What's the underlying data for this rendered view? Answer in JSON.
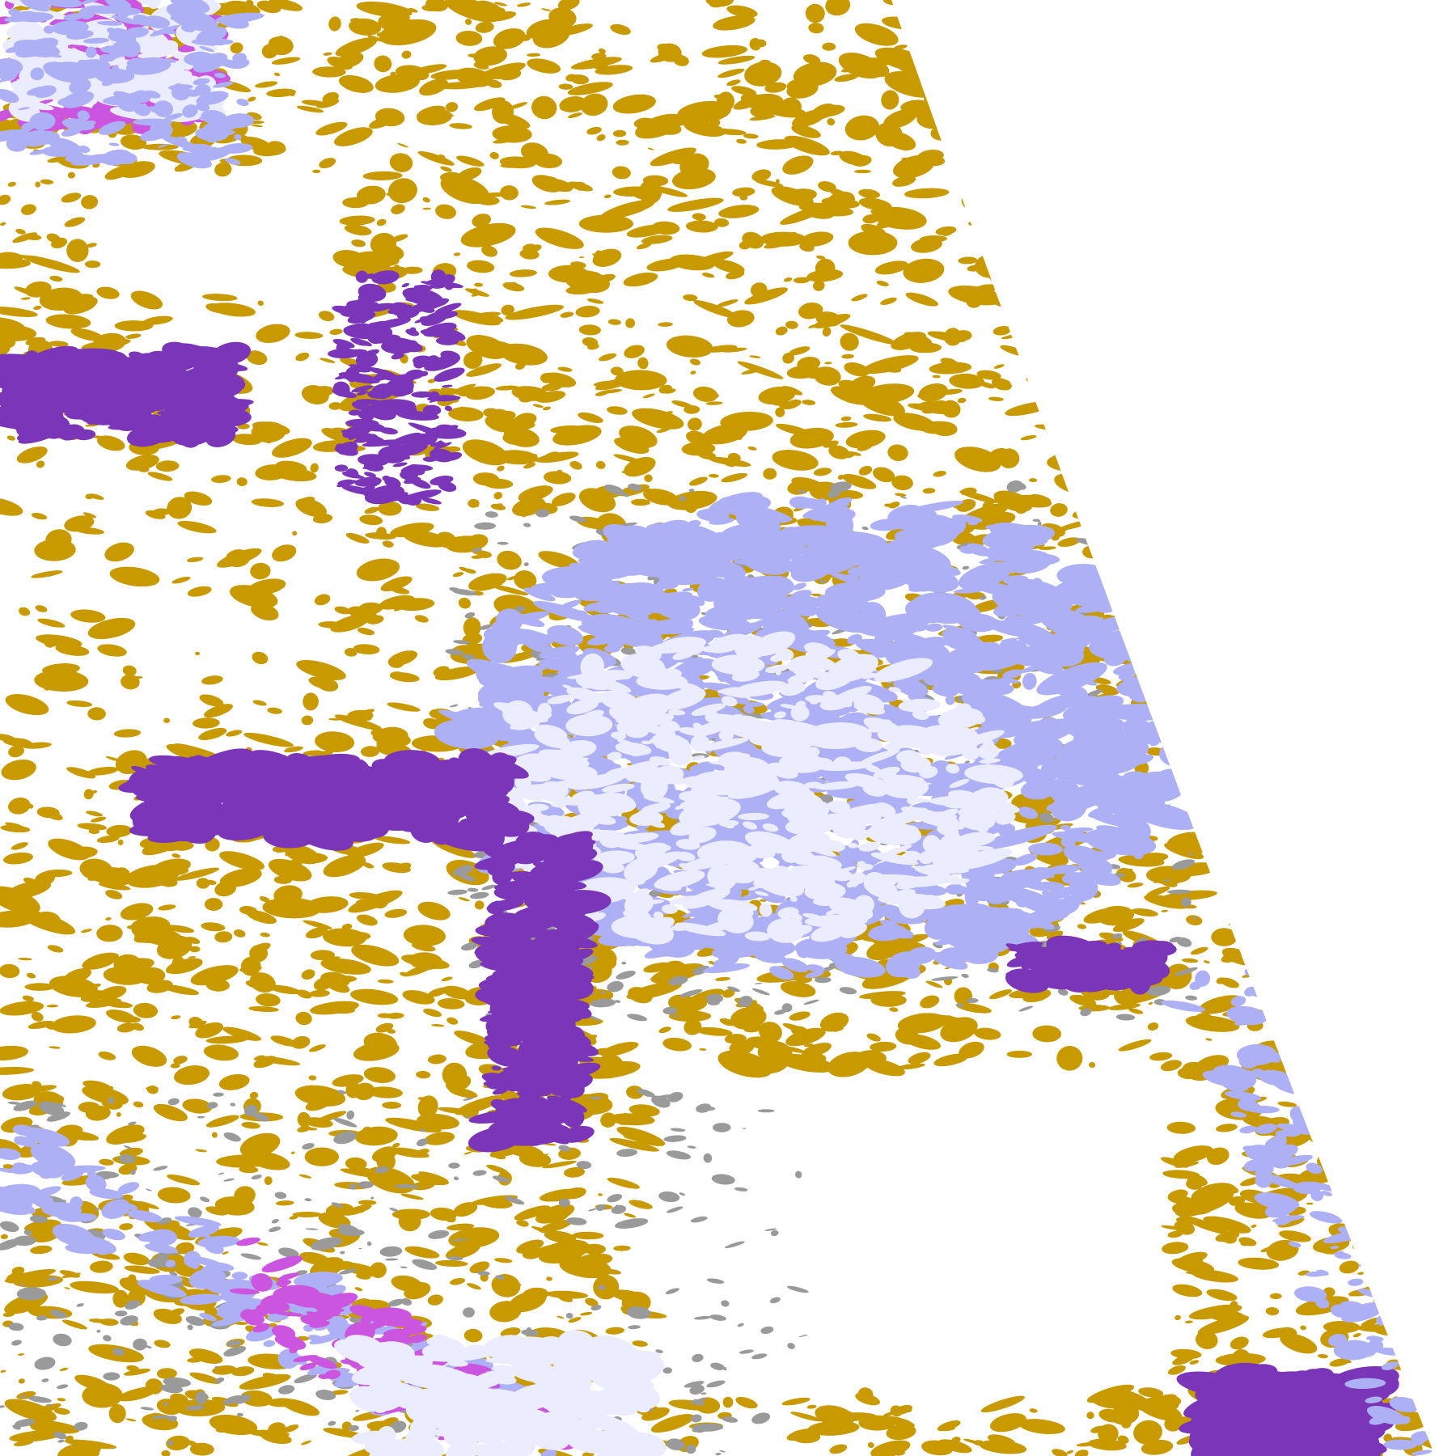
{
  "image": {
    "kind": "satellite false-color cloud classification swath",
    "background": "#ffffff",
    "palette": {
      "gold": "#c89a00",
      "purple": "#7a35b8",
      "magenta": "#cc55e0",
      "lavender": "#aeb0f6",
      "pale": "#ececff",
      "gray": "#9a9a9a"
    }
  }
}
